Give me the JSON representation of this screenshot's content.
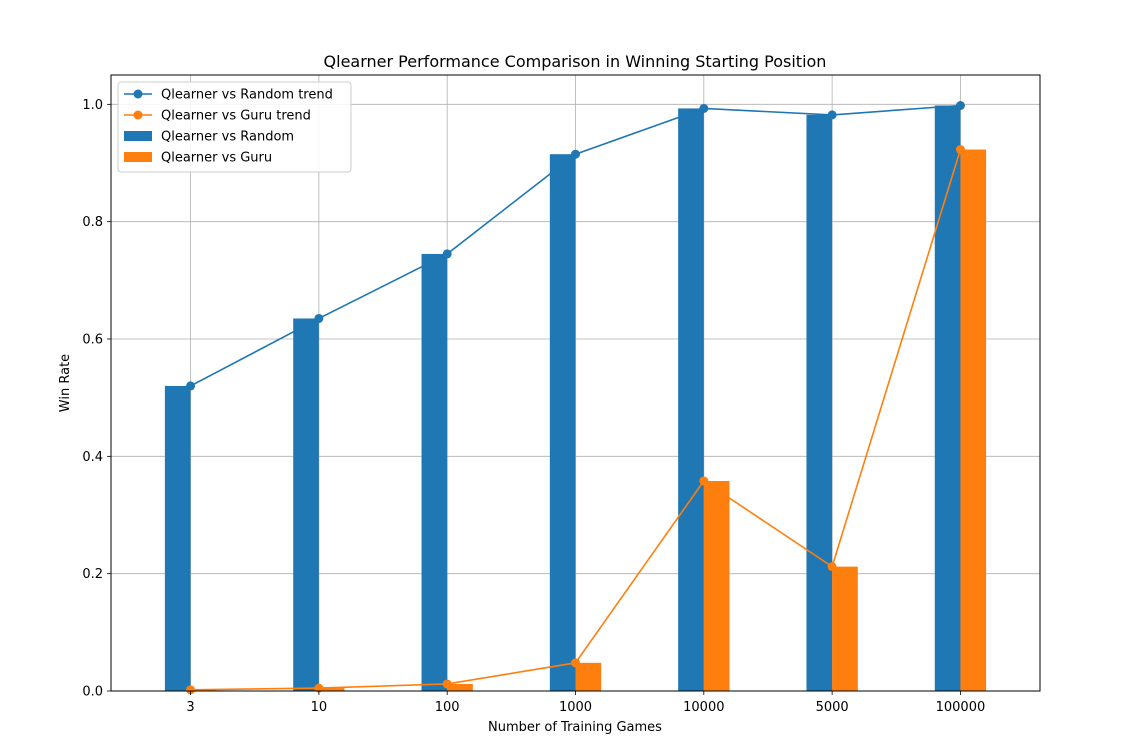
{
  "chart_data": {
    "type": "bar",
    "title": "Qlearner Performance Comparison in Winning Starting Position",
    "xlabel": "Number of Training Games",
    "ylabel": "Win Rate",
    "categories": [
      "3",
      "10",
      "100",
      "1000",
      "10000",
      "5000",
      "100000"
    ],
    "ylim": [
      0,
      1.05
    ],
    "yticks": [
      "0.0",
      "0.2",
      "0.4",
      "0.6",
      "0.8",
      "1.0"
    ],
    "grid": true,
    "legend_position": "top-left",
    "series": [
      {
        "name": "Qlearner vs Random",
        "kind": "bar",
        "color": "#1f77b4",
        "values": [
          0.52,
          0.635,
          0.745,
          0.915,
          0.993,
          0.982,
          0.998
        ]
      },
      {
        "name": "Qlearner vs Guru",
        "kind": "bar",
        "color": "#ff7f0e",
        "values": [
          0.002,
          0.005,
          0.012,
          0.048,
          0.358,
          0.212,
          0.923
        ]
      },
      {
        "name": "Qlearner vs Random trend",
        "kind": "line",
        "color": "#1f77b4",
        "values": [
          0.52,
          0.635,
          0.745,
          0.915,
          0.993,
          0.982,
          0.998
        ]
      },
      {
        "name": "Qlearner vs Guru trend",
        "kind": "line",
        "color": "#ff7f0e",
        "values": [
          0.002,
          0.005,
          0.012,
          0.048,
          0.358,
          0.212,
          0.923
        ]
      }
    ]
  }
}
